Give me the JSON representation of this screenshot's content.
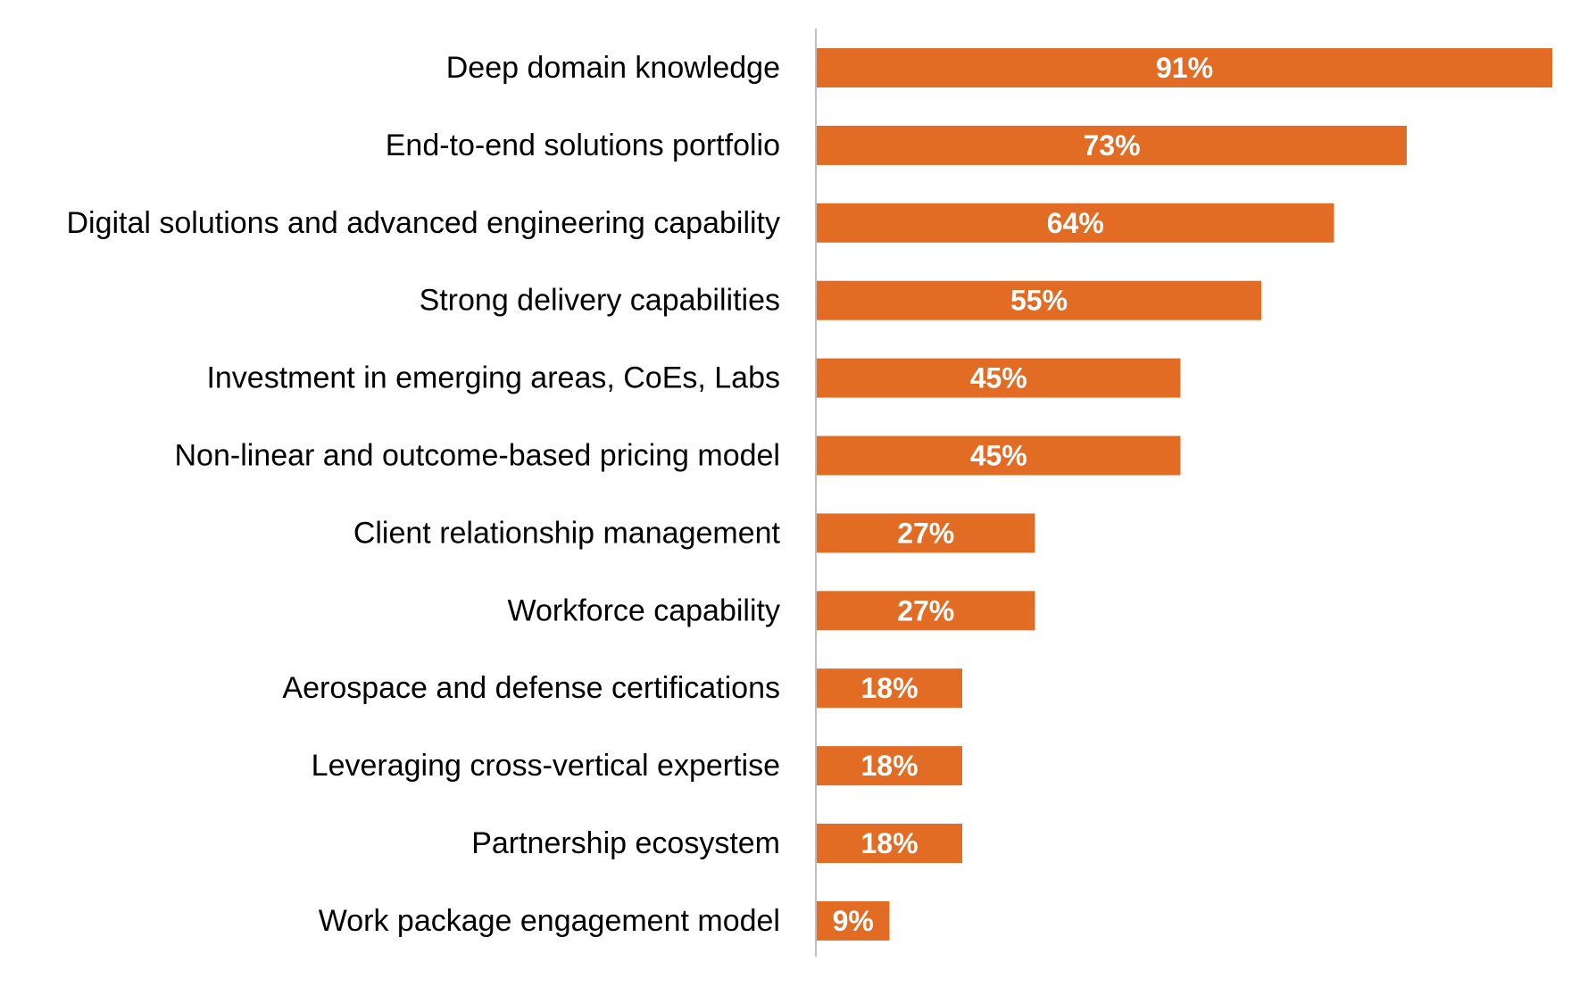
{
  "chart_data": {
    "type": "bar",
    "orientation": "horizontal",
    "categories": [
      "Deep domain knowledge",
      "End-to-end solutions portfolio",
      "Digital solutions and advanced engineering capability",
      "Strong delivery capabilities",
      "Investment in emerging areas, CoEs, Labs",
      "Non-linear and outcome-based pricing model",
      "Client relationship management",
      "Workforce capability",
      "Aerospace and defense certifications",
      "Leveraging cross-vertical expertise",
      "Partnership ecosystem",
      "Work package engagement model"
    ],
    "values": [
      91,
      73,
      64,
      55,
      45,
      45,
      27,
      27,
      18,
      18,
      18,
      9
    ],
    "value_labels": [
      "91%",
      "73%",
      "64%",
      "55%",
      "45%",
      "45%",
      "27%",
      "27%",
      "18%",
      "18%",
      "18%",
      "9%"
    ],
    "unit": "%",
    "xlim": [
      0,
      100
    ],
    "grid": false,
    "legend": "none",
    "bar_color": "#E26C24",
    "axis_color": "#BFBFBF"
  }
}
